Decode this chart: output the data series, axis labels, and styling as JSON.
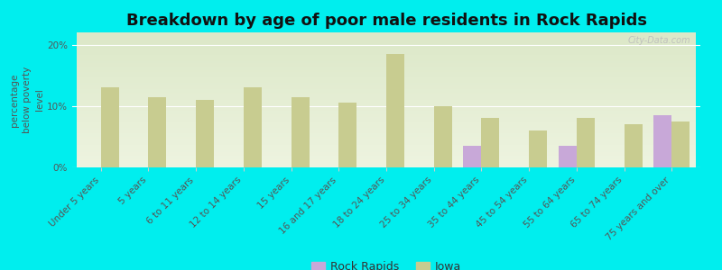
{
  "title": "Breakdown by age of poor male residents in Rock Rapids",
  "ylabel": "percentage\nbelow poverty\nlevel",
  "categories": [
    "Under 5 years",
    "5 years",
    "6 to 11 years",
    "12 to 14 years",
    "15 years",
    "16 and 17 years",
    "18 to 24 years",
    "25 to 34 years",
    "35 to 44 years",
    "45 to 54 years",
    "55 to 64 years",
    "65 to 74 years",
    "75 years and over"
  ],
  "rock_rapids": [
    0,
    0,
    0,
    0,
    0,
    0,
    0,
    0,
    3.5,
    0,
    3.5,
    0,
    8.5
  ],
  "iowa": [
    13.0,
    11.5,
    11.0,
    13.0,
    11.5,
    10.5,
    18.5,
    10.0,
    8.0,
    6.0,
    8.0,
    7.0,
    7.5
  ],
  "rock_rapids_color": "#c8a8d8",
  "iowa_color": "#c8cc90",
  "background_color": "#00eeee",
  "plot_bg_top": "#dce8c8",
  "plot_bg_bottom": "#eef4e0",
  "ylim": [
    0,
    22
  ],
  "yticks": [
    0,
    10,
    20
  ],
  "ytick_labels": [
    "0%",
    "10%",
    "20%"
  ],
  "bar_width": 0.38,
  "title_fontsize": 13,
  "axis_fontsize": 7.5,
  "tick_fontsize": 7.5,
  "legend_fontsize": 9,
  "watermark": "City-Data.com"
}
